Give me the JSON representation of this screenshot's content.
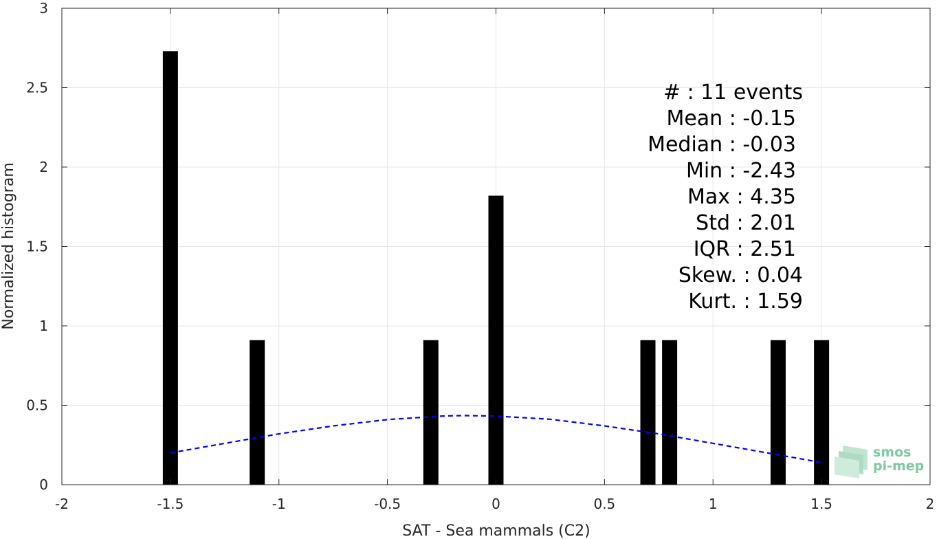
{
  "chart_data": {
    "type": "bar",
    "xlabel": "SAT - Sea mammals (C2)",
    "ylabel": "Normalized histogram",
    "xlim": [
      -2,
      2
    ],
    "ylim": [
      0,
      3
    ],
    "xticks": [
      -2,
      -1.5,
      -1,
      -0.5,
      0,
      0.5,
      1,
      1.5,
      2
    ],
    "xtick_labels": [
      "-2",
      "-1.5",
      "-1",
      "-0.5",
      "0",
      "0.5",
      "1",
      "1.5",
      "2"
    ],
    "yticks": [
      0,
      0.5,
      1,
      1.5,
      2,
      2.5,
      3
    ],
    "ytick_labels": [
      "0",
      "0.5",
      "1",
      "1.5",
      "2",
      "2.5",
      "3"
    ],
    "grid": true,
    "bar_color": "#000000",
    "bars": [
      {
        "x": -1.5,
        "y": 2.73
      },
      {
        "x": -1.1,
        "y": 0.91
      },
      {
        "x": -0.3,
        "y": 0.91
      },
      {
        "x": 0.0,
        "y": 1.82
      },
      {
        "x": 0.7,
        "y": 0.91
      },
      {
        "x": 0.8,
        "y": 0.91
      },
      {
        "x": 1.3,
        "y": 0.91
      },
      {
        "x": 1.5,
        "y": 0.91
      }
    ],
    "fit_curve": {
      "style": "dashed",
      "color": "#0000ff",
      "x": [
        -1.5,
        -1.25,
        -1.0,
        -0.75,
        -0.5,
        -0.25,
        -0.15,
        0.0,
        0.25,
        0.5,
        0.75,
        1.0,
        1.25,
        1.5
      ],
      "y": [
        0.2,
        0.26,
        0.32,
        0.37,
        0.41,
        0.432,
        0.435,
        0.432,
        0.412,
        0.37,
        0.32,
        0.26,
        0.2,
        0.14
      ]
    },
    "annotation": [
      "#  : 11 events",
      "Mean : -0.15",
      "Median : -0.03",
      "Min : -2.43",
      "Max : 4.35",
      "Std : 2.01",
      "IQR : 2.51",
      "Skew. : 0.04",
      "Kurt. : 1.59"
    ]
  },
  "logo": {
    "line1": "smos",
    "line2": "pi-mep",
    "color": "#7fc9a0"
  }
}
